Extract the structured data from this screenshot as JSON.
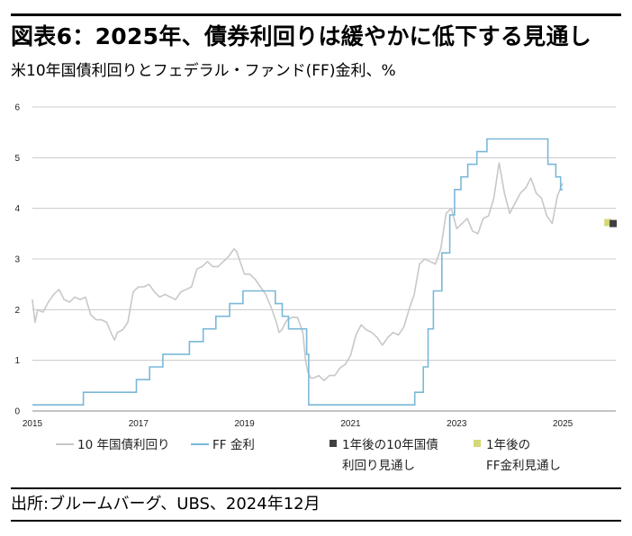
{
  "title": "図表6：2025年、債券利回りは緩やかに低下する見通し",
  "subtitle": "米10年国債利回りとフェデラル・ファンド(FF)金利、%",
  "source": "出所:ブルームバーグ、UBS、2024年12月",
  "colors": {
    "ust10y": "#c8c8c8",
    "ff": "#7ab8d8",
    "forecast_10y": "#404040",
    "forecast_ff": "#d4d878",
    "grid": "#bfbfbf"
  },
  "chart_data": {
    "type": "line",
    "title": "",
    "xlabel": "",
    "ylabel": "",
    "xlim": [
      2015.0,
      2026.0
    ],
    "ylim": [
      0,
      6
    ],
    "y_ticks": [
      "0",
      "1",
      "2",
      "3",
      "4",
      "5",
      "6"
    ],
    "x_ticks": [
      "2015",
      "2017",
      "2019",
      "2021",
      "2023",
      "2025"
    ],
    "x_tick_values": [
      2015,
      2017,
      2019,
      2021,
      2023,
      2025
    ],
    "grid": "horizontal",
    "legend_position": "bottom",
    "series": [
      {
        "name": "10 年国債利回り",
        "kind": "line",
        "x": [
          2015.0,
          2015.05,
          2015.1,
          2015.2,
          2015.3,
          2015.4,
          2015.5,
          2015.6,
          2015.7,
          2015.8,
          2015.9,
          2016.0,
          2016.1,
          2016.2,
          2016.3,
          2016.4,
          2016.5,
          2016.55,
          2016.6,
          2016.7,
          2016.8,
          2016.9,
          2017.0,
          2017.1,
          2017.2,
          2017.3,
          2017.4,
          2017.5,
          2017.6,
          2017.7,
          2017.8,
          2017.9,
          2018.0,
          2018.1,
          2018.2,
          2018.3,
          2018.4,
          2018.5,
          2018.6,
          2018.7,
          2018.8,
          2018.85,
          2018.9,
          2019.0,
          2019.1,
          2019.2,
          2019.3,
          2019.4,
          2019.5,
          2019.6,
          2019.65,
          2019.7,
          2019.8,
          2019.9,
          2020.0,
          2020.1,
          2020.15,
          2020.2,
          2020.25,
          2020.3,
          2020.4,
          2020.5,
          2020.6,
          2020.7,
          2020.8,
          2020.9,
          2021.0,
          2021.1,
          2021.2,
          2021.3,
          2021.4,
          2021.5,
          2021.6,
          2021.7,
          2021.8,
          2021.9,
          2022.0,
          2022.1,
          2022.2,
          2022.3,
          2022.4,
          2022.5,
          2022.6,
          2022.7,
          2022.8,
          2022.9,
          2023.0,
          2023.1,
          2023.2,
          2023.3,
          2023.4,
          2023.5,
          2023.6,
          2023.7,
          2023.8,
          2023.9,
          2024.0,
          2024.1,
          2024.2,
          2024.3,
          2024.4,
          2024.5,
          2024.6,
          2024.7,
          2024.8,
          2024.9,
          2025.0
        ],
        "values": [
          2.2,
          1.75,
          2.0,
          1.95,
          2.15,
          2.3,
          2.4,
          2.2,
          2.15,
          2.25,
          2.2,
          2.25,
          1.9,
          1.8,
          1.8,
          1.75,
          1.5,
          1.4,
          1.55,
          1.6,
          1.75,
          2.35,
          2.45,
          2.45,
          2.5,
          2.35,
          2.25,
          2.3,
          2.25,
          2.2,
          2.35,
          2.4,
          2.45,
          2.8,
          2.85,
          2.95,
          2.85,
          2.85,
          2.95,
          3.05,
          3.2,
          3.15,
          3.0,
          2.7,
          2.7,
          2.6,
          2.45,
          2.3,
          2.05,
          1.75,
          1.55,
          1.6,
          1.8,
          1.85,
          1.85,
          1.55,
          1.0,
          0.75,
          0.65,
          0.65,
          0.7,
          0.6,
          0.7,
          0.7,
          0.85,
          0.92,
          1.1,
          1.5,
          1.7,
          1.6,
          1.55,
          1.45,
          1.3,
          1.45,
          1.55,
          1.5,
          1.65,
          2.0,
          2.3,
          2.9,
          3.0,
          2.95,
          2.9,
          3.2,
          3.9,
          4.0,
          3.6,
          3.7,
          3.8,
          3.55,
          3.5,
          3.8,
          3.85,
          4.2,
          4.9,
          4.3,
          3.9,
          4.1,
          4.3,
          4.4,
          4.6,
          4.3,
          4.2,
          3.85,
          3.7,
          4.25,
          4.5
        ]
      },
      {
        "name": "FF 金利",
        "kind": "step",
        "x": [
          2015.0,
          2015.96,
          2016.96,
          2017.21,
          2017.46,
          2017.96,
          2018.22,
          2018.46,
          2018.72,
          2018.97,
          2019.58,
          2019.71,
          2019.83,
          2020.17,
          2020.21,
          2022.21,
          2022.37,
          2022.46,
          2022.56,
          2022.72,
          2022.87,
          2022.96,
          2023.08,
          2023.21,
          2023.38,
          2023.57,
          2024.72,
          2024.87,
          2024.96
        ],
        "values": [
          0.12,
          0.37,
          0.62,
          0.87,
          1.12,
          1.37,
          1.62,
          1.87,
          2.12,
          2.37,
          2.12,
          1.87,
          1.62,
          1.12,
          0.12,
          0.37,
          0.87,
          1.62,
          2.37,
          3.12,
          3.87,
          4.37,
          4.62,
          4.87,
          5.12,
          5.37,
          4.87,
          4.62,
          4.37
        ]
      }
    ],
    "forecasts": [
      {
        "name": "1年後の10年国債利回り見通し",
        "x": 2025.95,
        "value": 3.7
      },
      {
        "name": "1年後のFF金利見通し",
        "x": 2025.85,
        "value": 3.72
      }
    ],
    "legend": [
      {
        "line1": "10 年国債利回り",
        "line2": ""
      },
      {
        "line1": "FF 金利",
        "line2": ""
      },
      {
        "line1": "1年後の10年国債",
        "line2": "利回り見通し"
      },
      {
        "line1": "1年後の",
        "line2": "FF金利見通し"
      }
    ]
  }
}
